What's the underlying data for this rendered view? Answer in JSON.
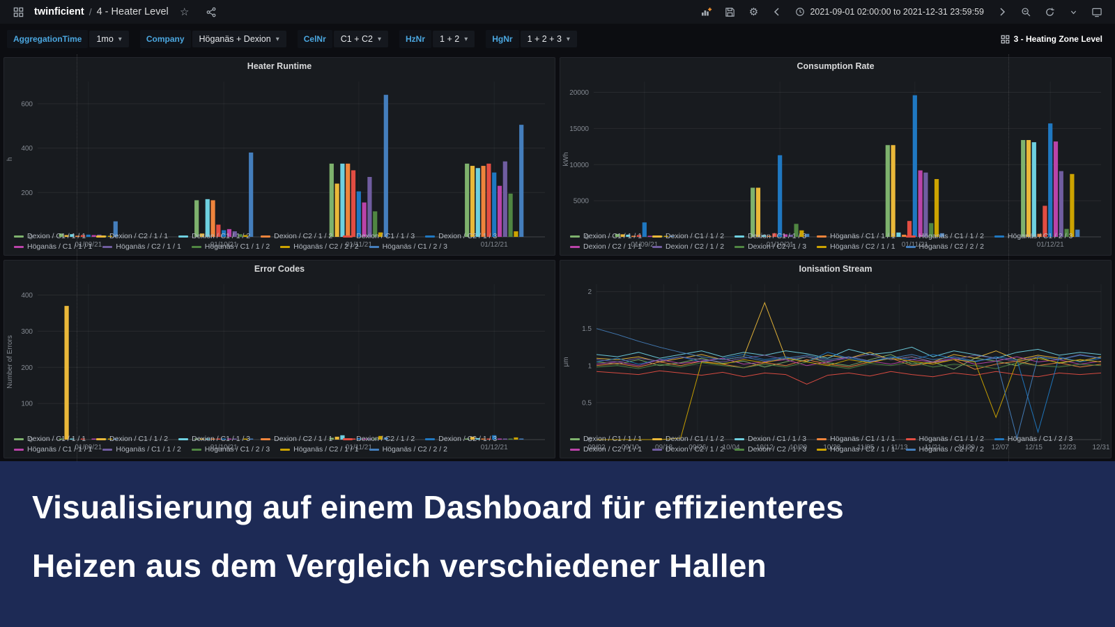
{
  "navbar": {
    "app_name": "twinficient",
    "separator": "/",
    "dashboard_title": "4 - Heater Level",
    "time_range": "2021-09-01 02:00:00 to 2021-12-31 23:59:59"
  },
  "filters": [
    {
      "label": "AggregationTime",
      "value": "1mo"
    },
    {
      "label": "Company",
      "value": "Höganäs + Dexion"
    },
    {
      "label": "CelNr",
      "value": "C1 + C2"
    },
    {
      "label": "HzNr",
      "value": "1 + 2"
    },
    {
      "label": "HgNr",
      "value": "1 + 2 + 3"
    }
  ],
  "dashboard_link_label": "3 - Heating Zone Level",
  "banner": {
    "line1": "Visualisierung auf einem Dashboard für effizienteres",
    "line2": "Heizen aus dem Vergleich verschiedener Hallen"
  },
  "colors": {
    "accent_blue": "#4ba7e0",
    "banner_bg": "#1d2a55",
    "panel_bg": "#181b1f",
    "add_plus_orange": "#ff9830"
  },
  "chart_data": [
    {
      "id": "heater-runtime",
      "type": "bar",
      "title": "Heater Runtime",
      "ylabel": "h",
      "ymax": 700,
      "yticks": [
        0,
        200,
        400,
        600
      ],
      "categories": [
        "01/09/21",
        "01/10/21",
        "01/11/21",
        "01/12/21"
      ],
      "category_pos": [
        0.1,
        0.367,
        0.633,
        0.9
      ],
      "series": [
        {
          "name": "Dexion / C1 / 1 / 1",
          "color": "#7EB26D",
          "values": [
            15,
            165,
            330,
            330
          ]
        },
        {
          "name": "Dexion / C2 / 1 / 1",
          "color": "#EAB839",
          "values": [
            8,
            15,
            240,
            320
          ]
        },
        {
          "name": "Dexion / C1 / 1 / 2",
          "color": "#6ED0E0",
          "values": [
            12,
            170,
            330,
            310
          ]
        },
        {
          "name": "Dexion / C2 / 1 / 2",
          "color": "#EF843C",
          "values": [
            5,
            165,
            330,
            320
          ]
        },
        {
          "name": "Dexion / C1 / 1 / 3",
          "color": "#E24D42",
          "values": [
            8,
            55,
            300,
            330
          ]
        },
        {
          "name": "Dexion / C2 / 1 / 3",
          "color": "#1F78C1",
          "values": [
            10,
            30,
            205,
            290
          ]
        },
        {
          "name": "Höganäs / C1 / 1 / 1",
          "color": "#BA43A9",
          "values": [
            8,
            35,
            155,
            230
          ]
        },
        {
          "name": "Höganäs / C2 / 1 / 1",
          "color": "#705DA0",
          "values": [
            10,
            25,
            270,
            340
          ]
        },
        {
          "name": "Höganäs / C1 / 1 / 2",
          "color": "#508642",
          "values": [
            5,
            12,
            115,
            195
          ]
        },
        {
          "name": "Höganäs / C2 / 2 / 2",
          "color": "#CCA300",
          "values": [
            4,
            8,
            20,
            25
          ]
        },
        {
          "name": "Höganäs / C1 / 2 / 3",
          "color": "#447EBC",
          "values": [
            70,
            380,
            640,
            505
          ]
        }
      ]
    },
    {
      "id": "consumption-rate",
      "type": "bar",
      "title": "Consumption Rate",
      "ylabel": "kWh",
      "ymax": 21500,
      "yticks": [
        0,
        5000,
        10000,
        15000,
        20000
      ],
      "categories": [
        "01/09/21",
        "01/10/21",
        "01/11/21",
        "01/12/21"
      ],
      "category_pos": [
        0.1,
        0.367,
        0.633,
        0.9
      ],
      "series": [
        {
          "name": "Dexion / C1 / 1 / 1",
          "color": "#7EB26D",
          "values": [
            400,
            6800,
            12700,
            13400
          ]
        },
        {
          "name": "Dexion / C1 / 1 / 2",
          "color": "#EAB839",
          "values": [
            350,
            6800,
            12700,
            13400
          ]
        },
        {
          "name": "Dexion / C1 / 1 / 3",
          "color": "#6ED0E0",
          "values": [
            300,
            250,
            600,
            13100
          ]
        },
        {
          "name": "Höganäs / C1 / 1 / 1",
          "color": "#EF843C",
          "values": [
            150,
            120,
            300,
            420
          ]
        },
        {
          "name": "Höganäs / C1 / 1 / 2",
          "color": "#E24D42",
          "values": [
            250,
            500,
            2200,
            4300
          ]
        },
        {
          "name": "Höganäs / C1 / 2 / 3",
          "color": "#1F78C1",
          "values": [
            2000,
            11300,
            19600,
            15700
          ]
        },
        {
          "name": "Dexion / C2 / 1 / 1",
          "color": "#BA43A9",
          "values": [
            120,
            350,
            9200,
            13200
          ]
        },
        {
          "name": "Dexion / C2 / 1 / 2",
          "color": "#705DA0",
          "values": [
            140,
            300,
            8900,
            9100
          ]
        },
        {
          "name": "Dexion / C2 / 1 / 3",
          "color": "#508642",
          "values": [
            90,
            1800,
            1900,
            1100
          ]
        },
        {
          "name": "Höganäs / C2 / 1 / 1",
          "color": "#CCA300",
          "values": [
            70,
            900,
            8000,
            8700
          ]
        },
        {
          "name": "Höganäs / C2 / 2 / 2",
          "color": "#447EBC",
          "values": [
            160,
            420,
            500,
            1000
          ]
        }
      ]
    },
    {
      "id": "error-codes",
      "type": "bar",
      "title": "Error Codes",
      "ylabel": "Number of Errors",
      "ymax": 430,
      "yticks": [
        0,
        100,
        200,
        300,
        400
      ],
      "categories": [
        "01/09/21",
        "01/10/21",
        "01/11/21",
        "01/12/21"
      ],
      "category_pos": [
        0.1,
        0.367,
        0.633,
        0.9
      ],
      "series": [
        {
          "name": "Dexion / C1 / 1 / 1",
          "color": "#7EB26D",
          "values": [
            2,
            3,
            5,
            3
          ]
        },
        {
          "name": "Dexion / C1 / 1 / 2",
          "color": "#EAB839",
          "values": [
            370,
            2,
            8,
            8
          ]
        },
        {
          "name": "Dexion / C1 / 1 / 3",
          "color": "#6ED0E0",
          "values": [
            1,
            2,
            12,
            4
          ]
        },
        {
          "name": "Dexion / C2 / 1 / 1",
          "color": "#EF843C",
          "values": [
            0,
            1,
            2,
            1
          ]
        },
        {
          "name": "Dexion / C2 / 1 / 2",
          "color": "#E24D42",
          "values": [
            1,
            1,
            3,
            2
          ]
        },
        {
          "name": "Dexion / C2 / 1 / 3",
          "color": "#1F78C1",
          "values": [
            0,
            2,
            4,
            12
          ]
        },
        {
          "name": "Höganäs / C1 / 1 / 1",
          "color": "#BA43A9",
          "values": [
            1,
            1,
            2,
            2
          ]
        },
        {
          "name": "Höganäs / C1 / 1 / 2",
          "color": "#705DA0",
          "values": [
            0,
            1,
            3,
            2
          ]
        },
        {
          "name": "Höganäs / C1 / 2 / 3",
          "color": "#508642",
          "values": [
            1,
            0,
            2,
            1
          ]
        },
        {
          "name": "Höganäs / C2 / 1 / 1",
          "color": "#CCA300",
          "values": [
            2,
            1,
            10,
            6
          ]
        },
        {
          "name": "Höganäs / C2 / 2 / 2",
          "color": "#447EBC",
          "values": [
            1,
            2,
            6,
            3
          ]
        }
      ]
    },
    {
      "id": "ionisation-stream",
      "type": "line",
      "title": "Ionisation Stream",
      "ylabel": "μm",
      "ymax": 2.1,
      "yticks": [
        0,
        0.5,
        1,
        1.5,
        2
      ],
      "xmax": 120,
      "xtick_days": [
        0,
        8,
        16,
        24,
        32,
        40,
        48,
        56,
        64,
        72,
        80,
        88,
        96,
        104,
        112,
        120
      ],
      "xtick_labels": [
        "09/02",
        "09/10",
        "09/18",
        "09/26",
        "10/04",
        "10/12",
        "10/20",
        "10/28",
        "11/05",
        "11/13",
        "11/21",
        "11/29",
        "12/07",
        "12/15",
        "12/23",
        "12/31"
      ],
      "x": [
        0,
        5,
        10,
        15,
        20,
        25,
        30,
        35,
        40,
        45,
        50,
        55,
        60,
        65,
        70,
        75,
        80,
        85,
        90,
        95,
        100,
        105,
        110,
        115,
        120
      ],
      "series": [
        {
          "name": "Dexion / C1 / 1 / 1",
          "color": "#7EB26D",
          "values": [
            1.05,
            1.02,
            1.08,
            1.0,
            1.04,
            1.1,
            1.03,
            1.06,
            0.98,
            1.05,
            1.12,
            1.04,
            1.0,
            1.08,
            1.15,
            1.02,
            1.05,
            0.95,
            1.1,
            1.06,
            1.0,
            1.12,
            1.03,
            1.08,
            1.05
          ]
        },
        {
          "name": "Dexion / C1 / 1 / 2",
          "color": "#EAB839",
          "values": [
            1.1,
            1.08,
            1.12,
            1.05,
            1.1,
            1.15,
            1.08,
            1.12,
            1.85,
            1.1,
            1.06,
            1.14,
            1.1,
            1.18,
            1.08,
            1.12,
            1.05,
            1.15,
            1.1,
            1.2,
            1.08,
            1.14,
            1.1,
            1.06,
            1.12
          ]
        },
        {
          "name": "Dexion / C1 / 1 / 3",
          "color": "#6ED0E0",
          "values": [
            1.15,
            1.12,
            1.18,
            1.1,
            1.15,
            1.2,
            1.12,
            1.18,
            1.14,
            1.2,
            1.16,
            1.1,
            1.22,
            1.15,
            1.18,
            1.25,
            1.12,
            1.2,
            1.15,
            1.1,
            1.18,
            1.22,
            1.14,
            1.18,
            1.15
          ]
        },
        {
          "name": "Höganäs / C1 / 1 / 1",
          "color": "#EF843C",
          "values": [
            1.0,
            1.03,
            0.98,
            1.05,
            1.0,
            1.06,
            1.02,
            0.97,
            1.04,
            1.0,
            1.08,
            1.02,
            0.98,
            1.05,
            1.1,
            1.0,
            1.04,
            1.08,
            0.95,
            1.02,
            1.06,
            1.0,
            1.04,
            0.98,
            1.02
          ]
        },
        {
          "name": "Höganäs / C1 / 1 / 2",
          "color": "#E24D42",
          "values": [
            0.92,
            0.9,
            0.88,
            0.93,
            0.9,
            0.87,
            0.91,
            0.85,
            0.9,
            0.88,
            0.75,
            0.87,
            0.9,
            0.86,
            0.92,
            0.88,
            0.85,
            0.9,
            0.87,
            0.92,
            0.88,
            0.85,
            0.9,
            0.88,
            0.9
          ]
        },
        {
          "name": "Höganäs / C1 / 2 / 3",
          "color": "#1F78C1",
          "values": [
            1.05,
            1.1,
            1.02,
            1.08,
            1.12,
            1.05,
            1.1,
            1.15,
            1.08,
            1.12,
            1.05,
            1.18,
            1.1,
            1.05,
            1.12,
            1.08,
            1.15,
            1.1,
            1.05,
            1.12,
            1.08,
            0.1,
            1.12,
            1.05,
            1.1
          ]
        },
        {
          "name": "Dexion / C2 / 1 / 1",
          "color": "#BA43A9",
          "values": [
            1.02,
            1.05,
            1.0,
            1.08,
            1.03,
            1.06,
            1.1,
            1.02,
            1.05,
            1.08,
            1.0,
            1.05,
            1.12,
            1.06,
            1.02,
            1.08,
            1.05,
            1.1,
            1.02,
            1.06,
            1.12,
            1.05,
            1.08,
            1.02,
            1.06
          ]
        },
        {
          "name": "Dexion / C2 / 1 / 2",
          "color": "#705DA0",
          "values": [
            1.08,
            1.05,
            1.1,
            1.06,
            1.12,
            1.08,
            1.05,
            1.1,
            1.14,
            1.08,
            1.12,
            1.06,
            1.1,
            1.15,
            1.08,
            1.12,
            1.05,
            1.08,
            1.14,
            1.1,
            1.06,
            1.12,
            1.08,
            1.15,
            1.1
          ]
        },
        {
          "name": "Dexion / C2 / 1 / 3",
          "color": "#508642",
          "values": [
            0.98,
            1.0,
            0.96,
            1.02,
            0.98,
            1.04,
            1.0,
            0.97,
            1.02,
            0.98,
            1.05,
            1.0,
            0.96,
            1.03,
            1.0,
            1.05,
            0.98,
            1.02,
            1.0,
            0.96,
            1.04,
            1.0,
            0.98,
            1.02,
            1.0
          ]
        },
        {
          "name": "Höganäs / C2 / 1 / 1",
          "color": "#CCA300",
          "values": [
            0.0,
            0.0,
            0.0,
            0.0,
            0.02,
            1.05,
            1.02,
            1.08,
            1.04,
            1.1,
            1.05,
            1.0,
            1.08,
            1.04,
            1.1,
            1.06,
            1.02,
            1.08,
            1.05,
            0.3,
            1.06,
            1.1,
            1.04,
            1.08,
            1.05
          ]
        },
        {
          "name": "Höganäs / C2 / 2 / 2",
          "color": "#447EBC",
          "values": [
            1.5,
            1.42,
            1.33,
            1.25,
            1.18,
            1.12,
            1.08,
            1.12,
            1.06,
            1.1,
            1.14,
            1.08,
            1.12,
            1.06,
            1.1,
            1.15,
            1.08,
            1.12,
            1.06,
            1.1,
            0.02,
            1.12,
            1.08,
            1.14,
            1.1
          ]
        }
      ]
    }
  ]
}
